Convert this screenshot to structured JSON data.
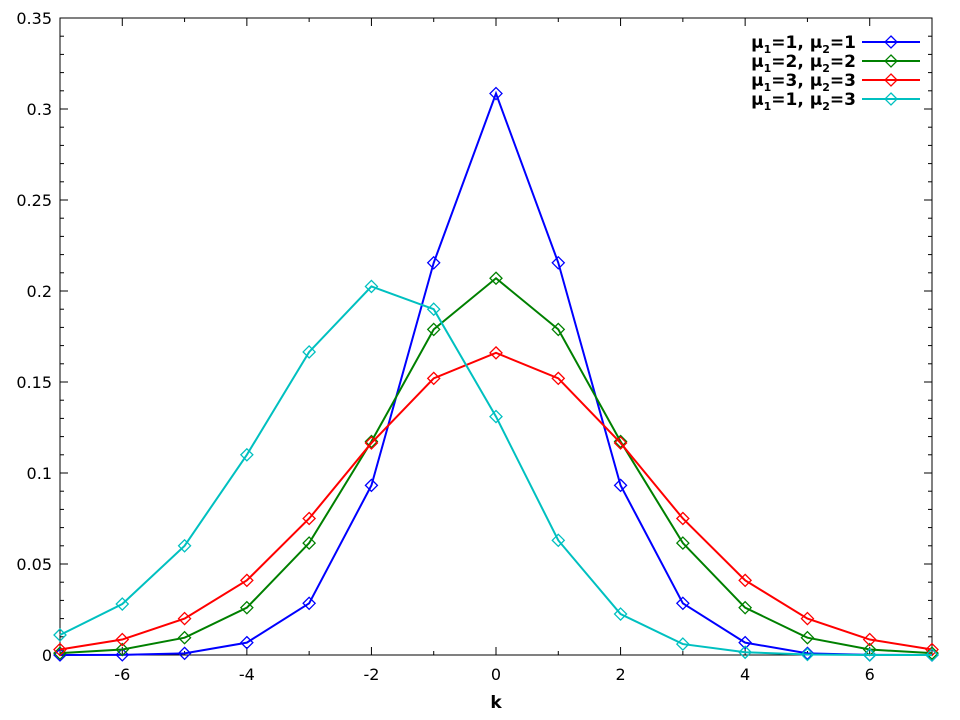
{
  "chart_data": {
    "type": "line",
    "title": "",
    "xlabel": "k",
    "ylabel": "",
    "xlim": [
      -7,
      7
    ],
    "ylim": [
      0,
      0.35
    ],
    "x_ticks": [
      -6,
      -4,
      -2,
      0,
      2,
      4,
      6
    ],
    "x_tick_labels": [
      "-6",
      "-4",
      "-2",
      "0",
      "2",
      "4",
      "6"
    ],
    "y_ticks": [
      0,
      0.05,
      0.1,
      0.15,
      0.2,
      0.25,
      0.3,
      0.35
    ],
    "y_tick_labels": [
      "0",
      "0.05",
      "0.1",
      "0.15",
      "0.2",
      "0.25",
      "0.3",
      "0.35"
    ],
    "grid": false,
    "legend_position": "top-right",
    "marker": "diamond",
    "x": [
      -7,
      -6,
      -5,
      -4,
      -3,
      -2,
      -1,
      0,
      1,
      2,
      3,
      4,
      5,
      6,
      7
    ],
    "series": [
      {
        "name_parts": [
          [
            "μ",
            "1",
            "=1, "
          ],
          [
            "μ",
            "2",
            "=1"
          ]
        ],
        "color": "#0000ff",
        "values": [
          0.0,
          0.0001,
          0.0009,
          0.0068,
          0.0284,
          0.0932,
          0.2155,
          0.3085,
          0.2155,
          0.0932,
          0.0284,
          0.0068,
          0.0009,
          0.0001,
          0.0
        ]
      },
      {
        "name_parts": [
          [
            "μ",
            "1",
            "=2, "
          ],
          [
            "μ",
            "2",
            "=2"
          ]
        ],
        "color": "#008000",
        "values": [
          0.001,
          0.003,
          0.0095,
          0.026,
          0.0615,
          0.1173,
          0.1789,
          0.207,
          0.1789,
          0.1173,
          0.0615,
          0.026,
          0.0095,
          0.003,
          0.001
        ]
      },
      {
        "name_parts": [
          [
            "μ",
            "1",
            "=3, "
          ],
          [
            "μ",
            "2",
            "=3"
          ]
        ],
        "color": "#ff0000",
        "values": [
          0.003,
          0.0085,
          0.02,
          0.041,
          0.075,
          0.1165,
          0.152,
          0.166,
          0.152,
          0.1165,
          0.075,
          0.041,
          0.02,
          0.0085,
          0.003
        ]
      },
      {
        "name_parts": [
          [
            "μ",
            "1",
            "=1, "
          ],
          [
            "μ",
            "2",
            "=3"
          ]
        ],
        "color": "#00c0c0",
        "values": [
          0.011,
          0.028,
          0.06,
          0.11,
          0.1665,
          0.2025,
          0.19,
          0.131,
          0.063,
          0.0225,
          0.006,
          0.0015,
          0.0003,
          0.0,
          0.0
        ]
      }
    ]
  }
}
